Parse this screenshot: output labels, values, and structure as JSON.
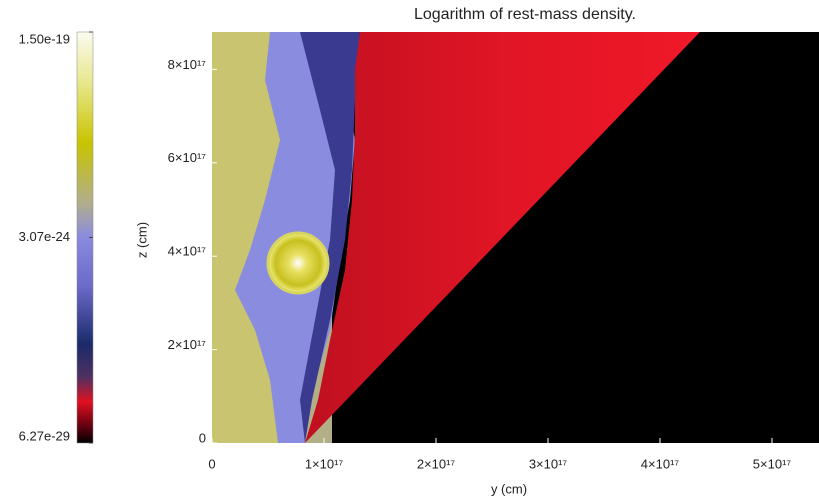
{
  "chart_data": {
    "type": "heatmap",
    "title": "Logarithm of rest-mass density.",
    "xlabel": "y (cm)",
    "ylabel": "z (cm)",
    "xlim": [
      0,
      5.42e+17
    ],
    "ylim": [
      0,
      8.8e+17
    ],
    "xticks": [
      0,
      {
        "value": 1e+17,
        "label": "1×10¹⁷"
      },
      {
        "value": 2e+17,
        "label": "2×10¹⁷"
      },
      {
        "value": 3e+17,
        "label": "3×10¹⁷"
      },
      {
        "value": 4e+17,
        "label": "4×10¹⁷"
      },
      {
        "value": 5e+17,
        "label": "5×10¹⁷"
      }
    ],
    "yticks": [
      0,
      {
        "value": 2e+17,
        "label": "2×10¹⁷"
      },
      {
        "value": 4e+17,
        "label": "4×10¹⁷"
      },
      {
        "value": 6e+17,
        "label": "6×10¹⁷"
      },
      {
        "value": 8e+17,
        "label": "8×10¹⁷"
      }
    ],
    "colorbar": {
      "scale": "log",
      "lim": [
        6.27e-29,
        1.5e-19
      ],
      "ticks": [
        {
          "value": 1.5e-19,
          "label": "1.50e-19"
        },
        {
          "value": 3.07e-24,
          "label": "3.07e-24"
        },
        {
          "value": 6.27e-29,
          "label": "6.27e-29"
        }
      ]
    }
  }
}
